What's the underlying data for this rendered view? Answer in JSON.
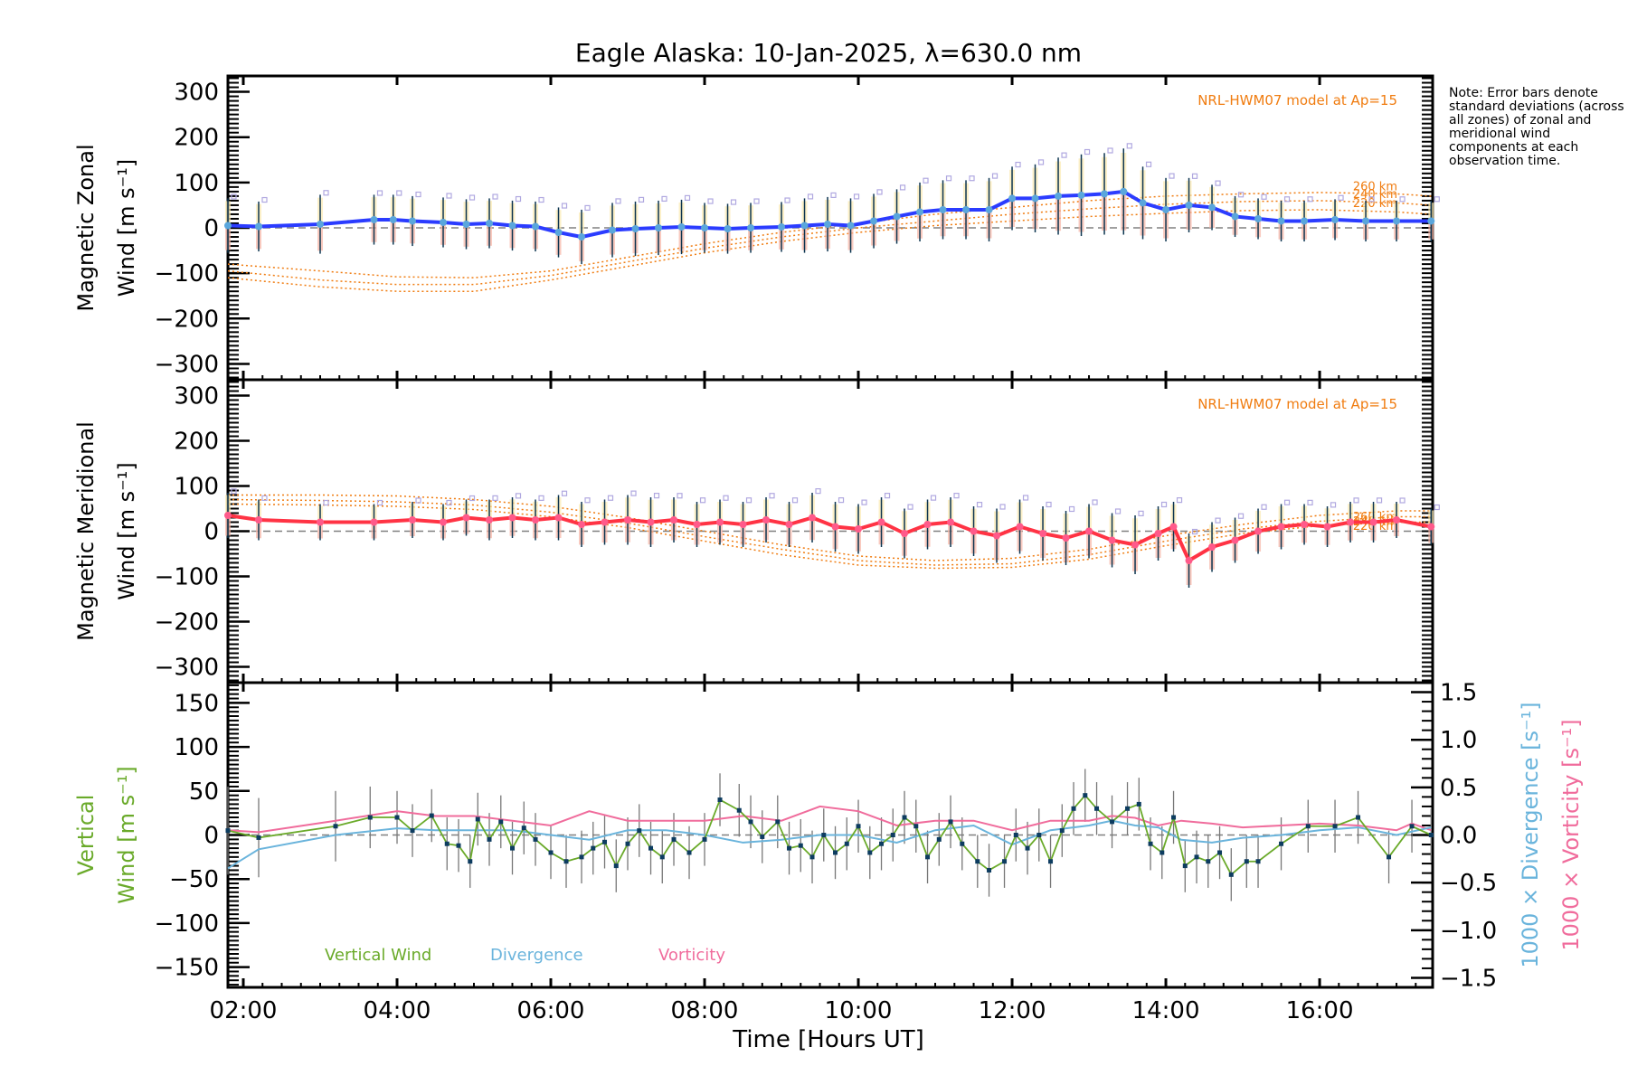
{
  "title": "Eagle Alaska: 10-Jan-2025, λ=630.0 nm",
  "note": "Note: Error bars denote standard deviations (across all zones) of zonal and meridional wind components at each observation time.",
  "colors": {
    "zonal": "#2b3cff",
    "zonal_marker": "#5aa6dc",
    "meridional": "#ff3344",
    "meridional_marker": "#ff5a8a",
    "model": "#f07c10",
    "errorbar": "#0d3550",
    "scatter": "#b0a8e0",
    "vertical": "#6aaa2a",
    "divergence": "#6ab4dc",
    "vorticity": "#f06c9c",
    "zero_line": "#808080"
  },
  "chart_data": [
    {
      "type": "line",
      "panel": "zonal",
      "ylabel_line1": "Magnetic Zonal",
      "ylabel_line2": "Wind [m s⁻¹]",
      "ylim": [
        -335,
        335
      ],
      "yticks": [
        300,
        200,
        100,
        0,
        -100,
        -200,
        -300
      ],
      "ytick_labels": [
        "300",
        "200",
        "100",
        "0",
        "−100",
        "−200",
        "−300"
      ],
      "model_label": "NRL-HWM07 model at Ap=15",
      "model_alt_labels": [
        "260 km",
        "240 km",
        "220 km"
      ],
      "series": [
        {
          "name": "zonal wind",
          "x": [
            1.8,
            2.2,
            3.0,
            3.7,
            3.95,
            4.2,
            4.6,
            4.9,
            5.2,
            5.5,
            5.8,
            6.1,
            6.4,
            6.8,
            7.1,
            7.4,
            7.7,
            8.0,
            8.3,
            8.6,
            9.0,
            9.3,
            9.6,
            9.9,
            10.2,
            10.5,
            10.8,
            11.1,
            11.4,
            11.7,
            12.0,
            12.3,
            12.6,
            12.9,
            13.2,
            13.45,
            13.7,
            14.0,
            14.3,
            14.6,
            14.9,
            15.2,
            15.5,
            15.8,
            16.2,
            16.6,
            17.0,
            17.45
          ],
          "y": [
            5,
            3,
            8,
            18,
            18,
            15,
            12,
            8,
            10,
            5,
            3,
            -10,
            -20,
            -5,
            -2,
            0,
            2,
            0,
            -2,
            0,
            2,
            5,
            8,
            5,
            15,
            25,
            35,
            40,
            40,
            40,
            65,
            65,
            70,
            72,
            75,
            80,
            55,
            40,
            50,
            45,
            25,
            20,
            15,
            15,
            18,
            15,
            15,
            15
          ],
          "err": [
            60,
            55,
            65,
            55,
            55,
            55,
            55,
            55,
            55,
            55,
            55,
            55,
            60,
            60,
            60,
            60,
            60,
            55,
            55,
            55,
            55,
            60,
            60,
            60,
            60,
            60,
            65,
            65,
            65,
            70,
            70,
            75,
            85,
            90,
            90,
            95,
            80,
            70,
            60,
            50,
            45,
            45,
            45,
            45,
            45,
            45,
            45,
            45
          ]
        },
        {
          "name": "model 260 km",
          "x": [
            1.8,
            3,
            4,
            5,
            6,
            7,
            8,
            9,
            10,
            11,
            12,
            13,
            14,
            15,
            16,
            17,
            17.45
          ],
          "y": [
            -80,
            -95,
            -108,
            -110,
            -95,
            -65,
            -35,
            -10,
            10,
            30,
            45,
            60,
            70,
            75,
            78,
            75,
            70
          ]
        },
        {
          "name": "model 240 km",
          "x": [
            1.8,
            3,
            4,
            5,
            6,
            7,
            8,
            9,
            10,
            11,
            12,
            13,
            14,
            15,
            16,
            17,
            17.45
          ],
          "y": [
            -95,
            -115,
            -125,
            -125,
            -105,
            -75,
            -45,
            -20,
            0,
            15,
            30,
            42,
            52,
            58,
            60,
            55,
            50
          ]
        },
        {
          "name": "model 220 km",
          "x": [
            1.8,
            3,
            4,
            5,
            6,
            7,
            8,
            9,
            10,
            11,
            12,
            13,
            14,
            15,
            16,
            17,
            17.45
          ],
          "y": [
            -110,
            -130,
            -140,
            -140,
            -115,
            -85,
            -55,
            -30,
            -10,
            5,
            15,
            25,
            32,
            38,
            40,
            35,
            30
          ]
        }
      ]
    },
    {
      "type": "line",
      "panel": "meridional",
      "ylabel_line1": "Magnetic Meridional",
      "ylabel_line2": "Wind [m s⁻¹]",
      "ylim": [
        -335,
        335
      ],
      "yticks": [
        300,
        200,
        100,
        0,
        -100,
        -200,
        -300
      ],
      "ytick_labels": [
        "300",
        "200",
        "100",
        "0",
        "−100",
        "−200",
        "−300"
      ],
      "model_label": "NRL-HWM07 model at Ap=15",
      "model_alt_labels": [
        "260 km",
        "240 km",
        "220 km"
      ],
      "series": [
        {
          "name": "meridional wind",
          "x": [
            1.8,
            2.2,
            3.0,
            3.7,
            4.2,
            4.6,
            4.9,
            5.2,
            5.5,
            5.8,
            6.1,
            6.4,
            6.7,
            7.0,
            7.3,
            7.6,
            7.9,
            8.2,
            8.5,
            8.8,
            9.1,
            9.4,
            9.7,
            10.0,
            10.3,
            10.6,
            10.9,
            11.2,
            11.5,
            11.8,
            12.1,
            12.4,
            12.7,
            13.0,
            13.3,
            13.6,
            13.9,
            14.1,
            14.3,
            14.6,
            14.9,
            15.2,
            15.5,
            15.8,
            16.1,
            16.4,
            16.7,
            17.0,
            17.45
          ],
          "y": [
            35,
            25,
            20,
            20,
            25,
            20,
            30,
            25,
            30,
            25,
            30,
            15,
            20,
            25,
            20,
            25,
            15,
            20,
            15,
            25,
            15,
            30,
            10,
            5,
            20,
            -5,
            15,
            20,
            0,
            -10,
            10,
            -5,
            -15,
            0,
            -20,
            -30,
            -5,
            10,
            -65,
            -35,
            -20,
            0,
            10,
            15,
            10,
            20,
            20,
            25,
            10
          ],
          "err": [
            50,
            45,
            40,
            40,
            40,
            40,
            40,
            45,
            45,
            45,
            50,
            50,
            50,
            55,
            55,
            50,
            50,
            50,
            50,
            50,
            50,
            55,
            55,
            55,
            55,
            55,
            55,
            55,
            55,
            60,
            60,
            60,
            60,
            60,
            60,
            65,
            60,
            55,
            60,
            55,
            50,
            50,
            50,
            45,
            45,
            45,
            45,
            40,
            40
          ]
        },
        {
          "name": "model 260 km",
          "x": [
            1.8,
            3,
            4,
            5,
            6,
            7,
            8,
            9,
            10,
            11,
            12,
            13,
            14,
            15,
            16,
            17,
            17.45
          ],
          "y": [
            80,
            80,
            78,
            70,
            55,
            30,
            0,
            -30,
            -55,
            -65,
            -60,
            -40,
            -10,
            15,
            35,
            45,
            45
          ]
        },
        {
          "name": "model 240 km",
          "x": [
            1.8,
            3,
            4,
            5,
            6,
            7,
            8,
            9,
            10,
            11,
            12,
            13,
            14,
            15,
            16,
            17,
            17.45
          ],
          "y": [
            70,
            68,
            65,
            58,
            42,
            18,
            -12,
            -40,
            -65,
            -75,
            -72,
            -52,
            -22,
            5,
            22,
            32,
            32
          ]
        },
        {
          "name": "model 220 km",
          "x": [
            1.8,
            3,
            4,
            5,
            6,
            7,
            8,
            9,
            10,
            11,
            12,
            13,
            14,
            15,
            16,
            17,
            17.45
          ],
          "y": [
            60,
            58,
            55,
            48,
            32,
            8,
            -22,
            -52,
            -75,
            -82,
            -80,
            -62,
            -32,
            -5,
            12,
            20,
            20
          ]
        }
      ]
    },
    {
      "type": "line",
      "panel": "vertical",
      "ylabel_line1": "Vertical",
      "ylabel_line2": "Wind [m s⁻¹]",
      "ylim": [
        -173,
        173
      ],
      "yticks": [
        150,
        100,
        50,
        0,
        -50,
        -100,
        -150
      ],
      "ytick_labels": [
        "150",
        "100",
        "50",
        "0",
        "−50",
        "−100",
        "−150"
      ],
      "y2label_div": "1000 × Divergence [s⁻¹]",
      "y2label_vort": "1000 × Vorticity [s⁻¹]",
      "y2lim": [
        -1.6,
        1.6
      ],
      "y2ticks": [
        1.5,
        1.0,
        0.5,
        0.0,
        -0.5,
        -1.0,
        -1.5
      ],
      "y2tick_labels": [
        "1.5",
        "1.0",
        "0.5",
        "0.0",
        "−0.5",
        "−1.0",
        "−1.5"
      ],
      "legend": [
        "Vertical Wind",
        "Divergence",
        "Vorticity"
      ],
      "series": [
        {
          "name": "Vertical Wind",
          "axis": "left",
          "x": [
            1.8,
            2.2,
            3.2,
            3.65,
            4.0,
            4.2,
            4.45,
            4.65,
            4.8,
            4.95,
            5.05,
            5.2,
            5.35,
            5.5,
            5.65,
            5.8,
            6.0,
            6.2,
            6.4,
            6.55,
            6.7,
            6.85,
            7.0,
            7.15,
            7.3,
            7.45,
            7.6,
            7.8,
            8.0,
            8.2,
            8.45,
            8.6,
            8.75,
            8.95,
            9.1,
            9.25,
            9.4,
            9.55,
            9.7,
            9.85,
            10.0,
            10.15,
            10.3,
            10.45,
            10.6,
            10.75,
            10.9,
            11.05,
            11.2,
            11.35,
            11.55,
            11.7,
            11.9,
            12.05,
            12.2,
            12.35,
            12.5,
            12.65,
            12.8,
            12.95,
            13.1,
            13.3,
            13.5,
            13.65,
            13.8,
            13.95,
            14.1,
            14.25,
            14.4,
            14.55,
            14.7,
            14.85,
            15.05,
            15.2,
            15.5,
            15.85,
            16.2,
            16.5,
            16.9,
            17.2,
            17.45
          ],
          "y": [
            5,
            -3,
            10,
            20,
            20,
            5,
            22,
            -10,
            -12,
            -30,
            18,
            -5,
            15,
            -15,
            8,
            -5,
            -20,
            -30,
            -25,
            -15,
            -8,
            -35,
            -10,
            5,
            -15,
            -25,
            -5,
            -20,
            -5,
            40,
            28,
            15,
            -2,
            15,
            -15,
            -12,
            -25,
            0,
            -20,
            -10,
            10,
            -20,
            -10,
            0,
            20,
            10,
            -25,
            -5,
            15,
            -10,
            -30,
            -40,
            -30,
            0,
            -15,
            0,
            -30,
            5,
            30,
            45,
            30,
            15,
            30,
            35,
            -10,
            -20,
            20,
            -35,
            -25,
            -30,
            -20,
            -45,
            -30,
            -30,
            -10,
            10,
            10,
            20,
            -25,
            10,
            0
          ],
          "err": [
            50,
            45,
            40,
            35,
            30,
            30,
            30,
            30,
            30,
            30,
            30,
            30,
            30,
            30,
            30,
            30,
            30,
            30,
            30,
            30,
            30,
            30,
            30,
            30,
            30,
            30,
            30,
            30,
            30,
            30,
            30,
            30,
            30,
            30,
            30,
            30,
            30,
            30,
            30,
            30,
            30,
            30,
            30,
            30,
            30,
            30,
            30,
            30,
            30,
            30,
            30,
            30,
            30,
            30,
            30,
            30,
            30,
            30,
            30,
            30,
            30,
            30,
            30,
            30,
            30,
            30,
            30,
            30,
            30,
            30,
            30,
            30,
            30,
            30,
            30,
            30,
            30,
            30,
            30,
            30,
            30
          ]
        },
        {
          "name": "Divergence",
          "axis": "right",
          "x": [
            1.8,
            2.2,
            3.2,
            4.0,
            4.5,
            5.0,
            5.5,
            6.0,
            6.5,
            7.0,
            7.5,
            8.0,
            8.5,
            9.0,
            9.5,
            10.0,
            10.5,
            11.0,
            11.5,
            12.0,
            12.5,
            13.0,
            13.3,
            13.6,
            13.9,
            14.2,
            14.6,
            15.0,
            15.5,
            16.0,
            16.5,
            17.0,
            17.45
          ],
          "y": [
            -0.35,
            -0.15,
            0.0,
            0.07,
            0.05,
            0.05,
            0.05,
            0.0,
            -0.05,
            0.05,
            0.05,
            0.0,
            -0.08,
            -0.05,
            0.0,
            0.0,
            -0.08,
            0.05,
            0.1,
            -0.1,
            0.05,
            0.1,
            0.15,
            0.1,
            0.08,
            -0.05,
            -0.08,
            -0.03,
            0.0,
            0.05,
            0.08,
            0.0,
            0.08
          ]
        },
        {
          "name": "Vorticity",
          "axis": "right",
          "x": [
            1.8,
            2.2,
            3.2,
            4.0,
            4.5,
            5.0,
            5.5,
            6.0,
            6.5,
            7.0,
            7.5,
            8.0,
            8.5,
            9.0,
            9.5,
            10.0,
            10.5,
            11.0,
            11.5,
            12.0,
            12.5,
            13.0,
            13.3,
            13.6,
            13.9,
            14.2,
            14.6,
            15.0,
            15.5,
            16.0,
            16.5,
            17.0,
            17.2,
            17.45
          ],
          "y": [
            0.05,
            0.03,
            0.15,
            0.25,
            0.2,
            0.2,
            0.15,
            0.1,
            0.25,
            0.15,
            0.15,
            0.15,
            0.2,
            0.15,
            0.3,
            0.25,
            0.1,
            0.15,
            0.15,
            0.05,
            0.15,
            0.15,
            0.2,
            0.18,
            0.1,
            0.15,
            0.12,
            0.08,
            0.1,
            0.12,
            0.1,
            0.05,
            0.12,
            0.05
          ]
        }
      ]
    }
  ],
  "xaxis": {
    "label": "Time [Hours UT]",
    "xlim": [
      1.8,
      17.47
    ],
    "ticks": [
      2,
      4,
      6,
      8,
      10,
      12,
      14,
      16
    ],
    "tick_labels": [
      "02:00",
      "04:00",
      "06:00",
      "08:00",
      "10:00",
      "12:00",
      "14:00",
      "16:00"
    ]
  }
}
